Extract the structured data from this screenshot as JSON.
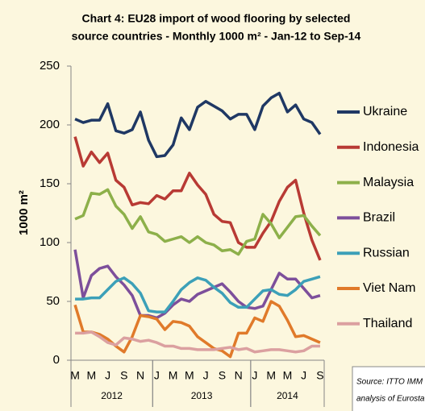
{
  "chart_data": {
    "type": "line",
    "title": [
      "Chart 4: EU28 import of wood flooring by selected",
      "source countries - Monthly 1000 m² - Jan-12 to Sep-14"
    ],
    "ylabel": "1000 m²",
    "source": [
      "Source: ITTO IMM",
      "analysis of Eurostat"
    ],
    "categories": [
      "M",
      null,
      "M",
      null,
      "J",
      null,
      "S",
      null,
      "N",
      null,
      "J",
      null,
      "M",
      null,
      "M",
      null,
      "J",
      null,
      "S",
      null,
      "N",
      null,
      "J",
      null,
      "M",
      null,
      "M",
      null,
      "J",
      null,
      "S"
    ],
    "year_groups": [
      {
        "label": "2012",
        "start": 0,
        "end": 9
      },
      {
        "label": "2013",
        "start": 10,
        "end": 21
      },
      {
        "label": "2014",
        "start": 22,
        "end": 30
      }
    ],
    "ylim": [
      0,
      250
    ],
    "yticks": [
      0,
      50,
      100,
      150,
      200,
      250
    ],
    "series": [
      {
        "name": "Ukraine",
        "color": "#1f3864",
        "values": [
          205,
          202,
          204,
          204,
          218,
          195,
          193,
          196,
          211,
          187,
          173,
          174,
          183,
          206,
          196,
          215,
          220,
          216,
          212,
          205,
          209,
          209,
          196,
          216,
          223,
          227,
          211,
          217,
          205,
          202,
          192
        ]
      },
      {
        "name": "Indonesia",
        "color": "#b83a34",
        "values": [
          190,
          165,
          177,
          168,
          176,
          153,
          147,
          132,
          134,
          133,
          140,
          137,
          144,
          144,
          159,
          149,
          141,
          124,
          118,
          117,
          100,
          96,
          96,
          108,
          118,
          135,
          147,
          153,
          125,
          102,
          85
        ]
      },
      {
        "name": "Malaysia",
        "color": "#8db04a",
        "values": [
          120,
          123,
          142,
          141,
          145,
          131,
          124,
          112,
          122,
          109,
          107,
          101,
          103,
          105,
          100,
          105,
          100,
          98,
          93,
          94,
          90,
          101,
          103,
          124,
          116,
          104,
          113,
          122,
          123,
          114,
          106
        ]
      },
      {
        "name": "Brazil",
        "color": "#7d4f9b",
        "values": [
          94,
          53,
          72,
          78,
          80,
          71,
          64,
          55,
          38,
          38,
          36,
          40,
          47,
          52,
          50,
          56,
          59,
          62,
          65,
          58,
          50,
          45,
          44,
          46,
          60,
          74,
          69,
          69,
          61,
          53,
          55
        ]
      },
      {
        "name": "Russian",
        "color": "#3ca0b8",
        "values": [
          52,
          52,
          53,
          53,
          60,
          67,
          70,
          65,
          57,
          42,
          41,
          41,
          50,
          60,
          66,
          70,
          68,
          62,
          57,
          49,
          45,
          45,
          52,
          59,
          60,
          56,
          55,
          60,
          67,
          69,
          71
        ]
      },
      {
        "name": "Viet Nam",
        "color": "#e07a2a",
        "values": [
          47,
          24,
          24,
          22,
          18,
          12,
          7,
          20,
          38,
          37,
          35,
          26,
          33,
          32,
          29,
          20,
          15,
          10,
          8,
          3,
          23,
          23,
          36,
          33,
          50,
          46,
          34,
          20,
          21,
          18,
          15
        ]
      },
      {
        "name": "Thailand",
        "color": "#dba0a0",
        "values": [
          23,
          23,
          24,
          20,
          15,
          13,
          19,
          18,
          16,
          17,
          15,
          12,
          12,
          10,
          10,
          9,
          9,
          9,
          10,
          11,
          9,
          10,
          7,
          8,
          9,
          9,
          8,
          7,
          8,
          12,
          12
        ]
      }
    ]
  }
}
